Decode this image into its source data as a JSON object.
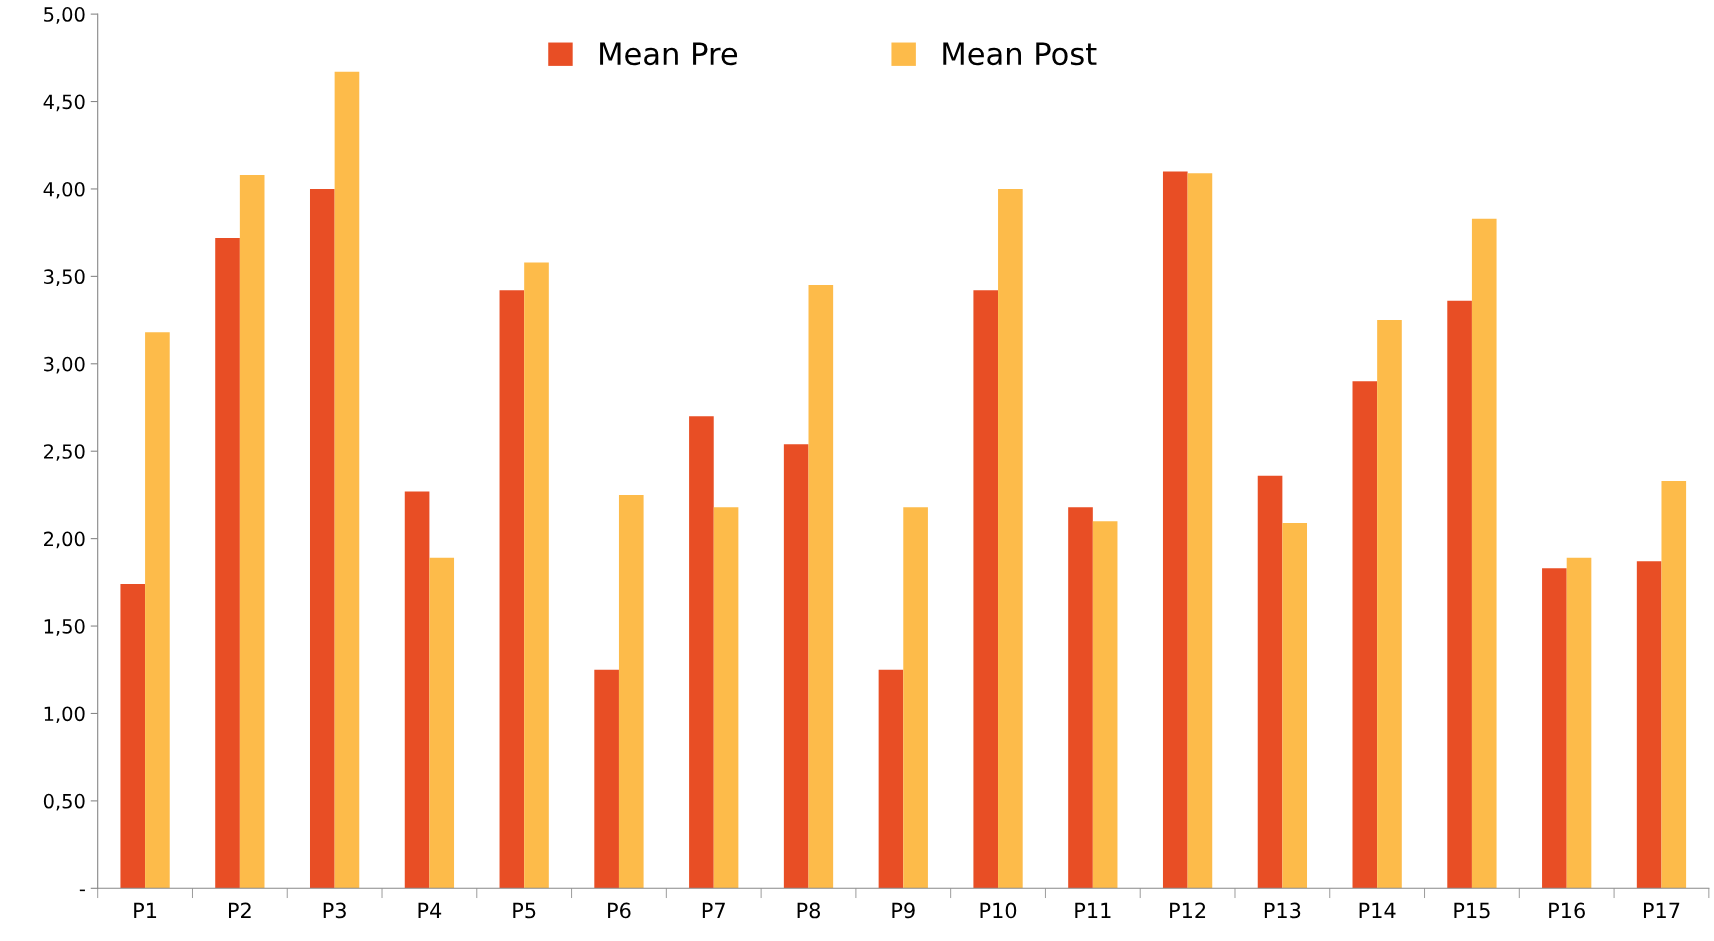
{
  "chart_data": {
    "type": "bar",
    "categories": [
      "P1",
      "P2",
      "P3",
      "P4",
      "P5",
      "P6",
      "P7",
      "P8",
      "P9",
      "P10",
      "P11",
      "P12",
      "P13",
      "P14",
      "P15",
      "P16",
      "P17"
    ],
    "series": [
      {
        "name": "Mean Pre",
        "color": "#e84e25",
        "values": [
          1.74,
          3.72,
          4.0,
          2.27,
          3.42,
          1.25,
          2.7,
          2.54,
          1.25,
          3.42,
          2.18,
          4.1,
          2.36,
          2.9,
          3.36,
          1.83,
          1.87
        ]
      },
      {
        "name": "Mean Post",
        "color": "#fdbb4a",
        "values": [
          3.18,
          4.08,
          4.67,
          1.89,
          3.58,
          2.25,
          2.18,
          3.45,
          2.18,
          4.0,
          2.1,
          4.09,
          2.09,
          3.25,
          3.83,
          1.89,
          2.33
        ]
      }
    ],
    "ylim": [
      0,
      5
    ],
    "yticks": [
      {
        "value": 0,
        "label": "-"
      },
      {
        "value": 0.5,
        "label": "0,50"
      },
      {
        "value": 1,
        "label": "1,00"
      },
      {
        "value": 1.5,
        "label": "1,50"
      },
      {
        "value": 2,
        "label": "2,00"
      },
      {
        "value": 2.5,
        "label": "2,50"
      },
      {
        "value": 3,
        "label": "3,00"
      },
      {
        "value": 3.5,
        "label": "3,50"
      },
      {
        "value": 4,
        "label": "4,00"
      },
      {
        "value": 4.5,
        "label": "4,50"
      },
      {
        "value": 5,
        "label": "5,00"
      }
    ],
    "grid": false,
    "legend": "top"
  }
}
